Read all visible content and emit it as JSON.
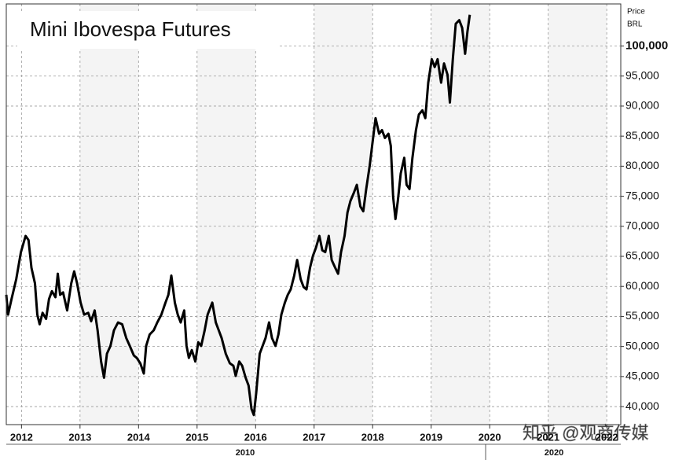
{
  "chart_data": {
    "type": "line",
    "title": "Mini Ibovespa Futures",
    "y_label_lines": [
      "Price",
      "BRL"
    ],
    "decade_labels": [
      "2010",
      "2020"
    ],
    "watermark": "知乎 @观商传媒",
    "grid": true,
    "color": "#000000",
    "xlim": [
      2011.74,
      2022.24
    ],
    "xticks": [
      2012,
      2013,
      2014,
      2015,
      2016,
      2017,
      2018,
      2019,
      2020,
      2021,
      2022
    ],
    "ylim": [
      37000,
      107000
    ],
    "yticks": [
      {
        "value": 40000,
        "label": "40,000"
      },
      {
        "value": 45000,
        "label": "45,000"
      },
      {
        "value": 50000,
        "label": "50,000"
      },
      {
        "value": 55000,
        "label": "55,000"
      },
      {
        "value": 60000,
        "label": "60,000"
      },
      {
        "value": 65000,
        "label": "65,000"
      },
      {
        "value": 70000,
        "label": "70,000"
      },
      {
        "value": 75000,
        "label": "75,000"
      },
      {
        "value": 80000,
        "label": "80,000"
      },
      {
        "value": 85000,
        "label": "85,000"
      },
      {
        "value": 90000,
        "label": "90,000"
      },
      {
        "value": 95000,
        "label": "95,000"
      },
      {
        "value": 100000,
        "label": "100,000"
      }
    ],
    "x": [
      2011.74,
      2011.77,
      2011.83,
      2011.91,
      2011.99,
      2012.07,
      2012.12,
      2012.17,
      2012.23,
      2012.27,
      2012.31,
      2012.36,
      2012.42,
      2012.47,
      2012.52,
      2012.58,
      2012.62,
      2012.66,
      2012.71,
      2012.78,
      2012.85,
      2012.9,
      2012.95,
      2013.01,
      2013.07,
      2013.14,
      2013.19,
      2013.25,
      2013.3,
      2013.36,
      2013.41,
      2013.46,
      2013.52,
      2013.58,
      2013.65,
      2013.72,
      2013.79,
      2013.85,
      2013.92,
      2013.97,
      2014.03,
      2014.09,
      2014.13,
      2014.19,
      2014.26,
      2014.32,
      2014.39,
      2014.46,
      2014.51,
      2014.56,
      2014.62,
      2014.67,
      2014.72,
      2014.78,
      2014.82,
      2014.86,
      2014.91,
      2014.97,
      2015.02,
      2015.07,
      2015.13,
      2015.18,
      2015.26,
      2015.32,
      2015.37,
      2015.42,
      2015.49,
      2015.56,
      2015.62,
      2015.66,
      2015.72,
      2015.77,
      2015.83,
      2015.88,
      2015.93,
      2015.97,
      2016.01,
      2016.07,
      2016.12,
      2016.17,
      2016.23,
      2016.28,
      2016.34,
      2016.39,
      2016.44,
      2016.5,
      2016.55,
      2016.6,
      2016.66,
      2016.71,
      2016.77,
      2016.82,
      2016.87,
      2016.93,
      2016.98,
      2017.03,
      2017.09,
      2017.14,
      2017.19,
      2017.25,
      2017.3,
      2017.36,
      2017.41,
      2017.46,
      2017.52,
      2017.57,
      2017.62,
      2017.68,
      2017.73,
      2017.79,
      2017.84,
      2017.89,
      2017.95,
      2018.0,
      2018.05,
      2018.11,
      2018.16,
      2018.21,
      2018.27,
      2018.31,
      2018.35,
      2018.39,
      2018.43,
      2018.48,
      2018.54,
      2018.58,
      2018.63,
      2018.68,
      2018.74,
      2018.79,
      2018.85,
      2018.9,
      2018.95,
      2019.01,
      2019.06,
      2019.11,
      2019.17,
      2019.22,
      2019.28,
      2019.32,
      2019.37,
      2019.42,
      2019.48,
      2019.53,
      2019.58,
      2019.62,
      2019.66
    ],
    "values": [
      58600,
      55300,
      57900,
      61200,
      65700,
      68400,
      67700,
      63100,
      60500,
      55300,
      53700,
      55600,
      54600,
      57900,
      59200,
      58200,
      62100,
      58600,
      59000,
      56000,
      60500,
      62500,
      60500,
      57300,
      55300,
      55600,
      54200,
      56000,
      52700,
      47500,
      44800,
      48800,
      50100,
      52700,
      54000,
      53700,
      51400,
      50100,
      48500,
      48100,
      47200,
      45500,
      50100,
      52000,
      52700,
      54000,
      55300,
      57300,
      58600,
      61800,
      57300,
      55300,
      54000,
      56000,
      50100,
      48100,
      49400,
      47500,
      50700,
      50100,
      52700,
      55300,
      57300,
      54000,
      52700,
      51400,
      48800,
      47200,
      46800,
      45100,
      47500,
      46800,
      44800,
      43500,
      39600,
      38600,
      42200,
      48800,
      50100,
      51400,
      54000,
      51400,
      50100,
      52000,
      55300,
      57300,
      58600,
      59500,
      61800,
      64400,
      61200,
      59900,
      59500,
      63100,
      65100,
      66400,
      68400,
      66000,
      65700,
      68400,
      64400,
      63100,
      62100,
      65700,
      68400,
      72300,
      74200,
      75600,
      76900,
      73300,
      72500,
      76200,
      80100,
      84100,
      88000,
      85400,
      86000,
      84700,
      85400,
      83400,
      74900,
      71200,
      74200,
      78800,
      81400,
      76900,
      76200,
      81400,
      86000,
      88600,
      89300,
      88000,
      93900,
      97800,
      96500,
      97800,
      93900,
      97100,
      95200,
      90600,
      97800,
      103700,
      104300,
      103000,
      98700,
      102400,
      105200
    ]
  }
}
